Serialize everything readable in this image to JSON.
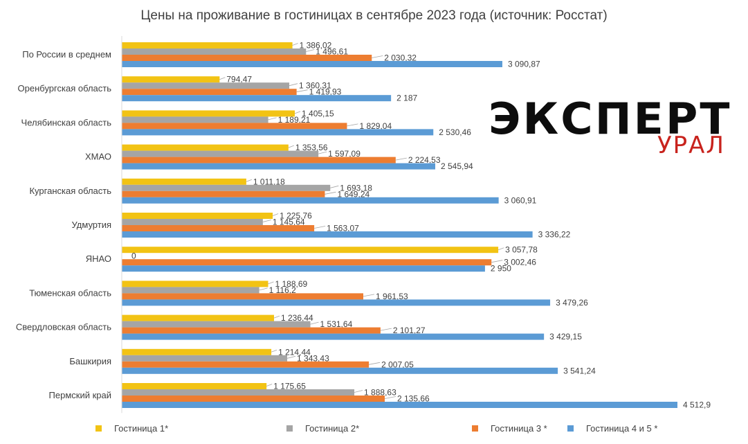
{
  "chart_data": {
    "type": "bar",
    "orientation": "horizontal",
    "title": "Цены на проживание  в гостиницах  в сентябре  2023 года (источник: Росстат)",
    "xlabel": "",
    "ylabel": "",
    "xlim": [
      0,
      4700
    ],
    "grid": false,
    "legend_position": "bottom",
    "categories": [
      "По России в среднем",
      "Оренбургская область",
      "Челябинская область",
      "ХМАО",
      "Курганская область",
      "Удмуртия",
      "ЯНАО",
      "Тюменская область",
      "Свердловская область",
      "Башкирия",
      "Пермский край"
    ],
    "series": [
      {
        "name": "Гостиница 1*",
        "color": "#F2C314",
        "values": [
          1386.02,
          794.47,
          1405.15,
          1353.56,
          1011.18,
          1225.76,
          3057.78,
          1188.69,
          1236.44,
          1214.44,
          1175.65
        ],
        "labels": [
          "1 386,02",
          "794,47",
          "1 405,15",
          "1 353,56",
          "1 011,18",
          "1 225,76",
          "3 057,78",
          "1 188,69",
          "1 236,44",
          "1 214,44",
          "1 175,65"
        ]
      },
      {
        "name": "Гостиница 2*",
        "color": "#A5A5A5",
        "values": [
          1496.61,
          1360.31,
          1189.21,
          1597.09,
          1693.18,
          1145.64,
          0,
          1116.2,
          1531.64,
          1343.43,
          1888.63
        ],
        "labels": [
          "1 496,61",
          "1 360,31",
          "1 189,21",
          "1 597,09",
          "1 693,18",
          "1 145,64",
          "0",
          "1 116,2",
          "1 531,64",
          "1 343,43",
          "1 888,63"
        ]
      },
      {
        "name": "Гостиница 3 *",
        "color": "#ED7D31",
        "values": [
          2030.32,
          1419.93,
          1829.04,
          2224.53,
          1649.24,
          1563.07,
          3002.46,
          1961.53,
          2101.27,
          2007.05,
          2135.66
        ],
        "labels": [
          "2 030,32",
          "1 419,93",
          "1 829,04",
          "2 224,53",
          "1 649,24",
          "1 563,07",
          "3 002,46",
          "1 961,53",
          "2 101,27",
          "2 007,05",
          "2 135,66"
        ]
      },
      {
        "name": "Гостиница 4 и 5 *",
        "color": "#5B9BD5",
        "values": [
          3090.87,
          2187,
          2530.46,
          2545.94,
          3060.91,
          3336.22,
          2950,
          3479.26,
          3429.15,
          3541.24,
          4512.9
        ],
        "labels": [
          "3 090,87",
          "2 187",
          "2 530,46",
          "2 545,94",
          "3 060,91",
          "3 336,22",
          "2 950",
          "3 479,26",
          "3 429,15",
          "3 541,24",
          "4 512,9"
        ]
      }
    ]
  },
  "logo": {
    "main_text": "ЭКСПЕРТ",
    "sub_text": "УРАЛ"
  }
}
